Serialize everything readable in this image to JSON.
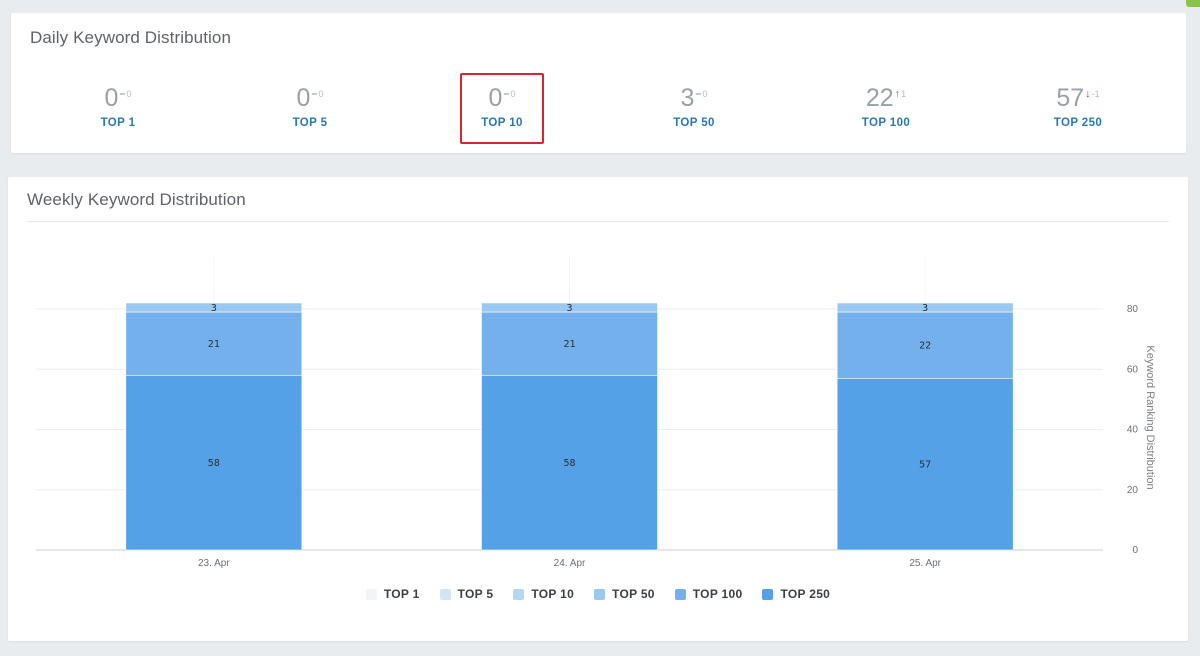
{
  "daily": {
    "title": "Daily Keyword Distribution",
    "metrics": [
      {
        "label": "TOP 1",
        "value": "0",
        "change": "0",
        "trend": "flat",
        "highlighted": false
      },
      {
        "label": "TOP 5",
        "value": "0",
        "change": "0",
        "trend": "flat",
        "highlighted": false
      },
      {
        "label": "TOP 10",
        "value": "0",
        "change": "0",
        "trend": "flat",
        "highlighted": true
      },
      {
        "label": "TOP 50",
        "value": "3",
        "change": "0",
        "trend": "flat",
        "highlighted": false
      },
      {
        "label": "TOP 100",
        "value": "22",
        "change": "1",
        "trend": "up",
        "highlighted": false
      },
      {
        "label": "TOP 250",
        "value": "57",
        "change": "-1",
        "trend": "down",
        "highlighted": false
      }
    ],
    "trend_colors": {
      "up": "#1fb47e",
      "down": "#e0322b",
      "flat": "#9aa0a6"
    },
    "highlight_color": "#d9262c"
  },
  "weekly": {
    "title": "Weekly Keyword Distribution"
  },
  "chart_data": {
    "type": "bar",
    "stacked": true,
    "categories": [
      "23. Apr",
      "24. Apr",
      "25. Apr"
    ],
    "series": [
      {
        "name": "TOP 1",
        "color": "#f2f4f6",
        "values": [
          0,
          0,
          0
        ]
      },
      {
        "name": "TOP 5",
        "color": "#d3e6f7",
        "values": [
          0,
          0,
          0
        ]
      },
      {
        "name": "TOP 10",
        "color": "#b6d6f3",
        "values": [
          0,
          0,
          0
        ]
      },
      {
        "name": "TOP 50",
        "color": "#9bc8f0",
        "values": [
          3,
          3,
          3
        ]
      },
      {
        "name": "TOP 100",
        "color": "#74b1ec",
        "values": [
          21,
          21,
          22
        ]
      },
      {
        "name": "TOP 250",
        "color": "#55a1e8",
        "values": [
          58,
          58,
          57
        ]
      }
    ],
    "ylabel": "Keyword Ranking Distribution",
    "ylim": [
      0,
      80
    ],
    "yticks": [
      0,
      20,
      40,
      60,
      80
    ],
    "y_axis_position": "right",
    "grid": true,
    "legend_position": "bottom-center",
    "data_labels": true
  }
}
